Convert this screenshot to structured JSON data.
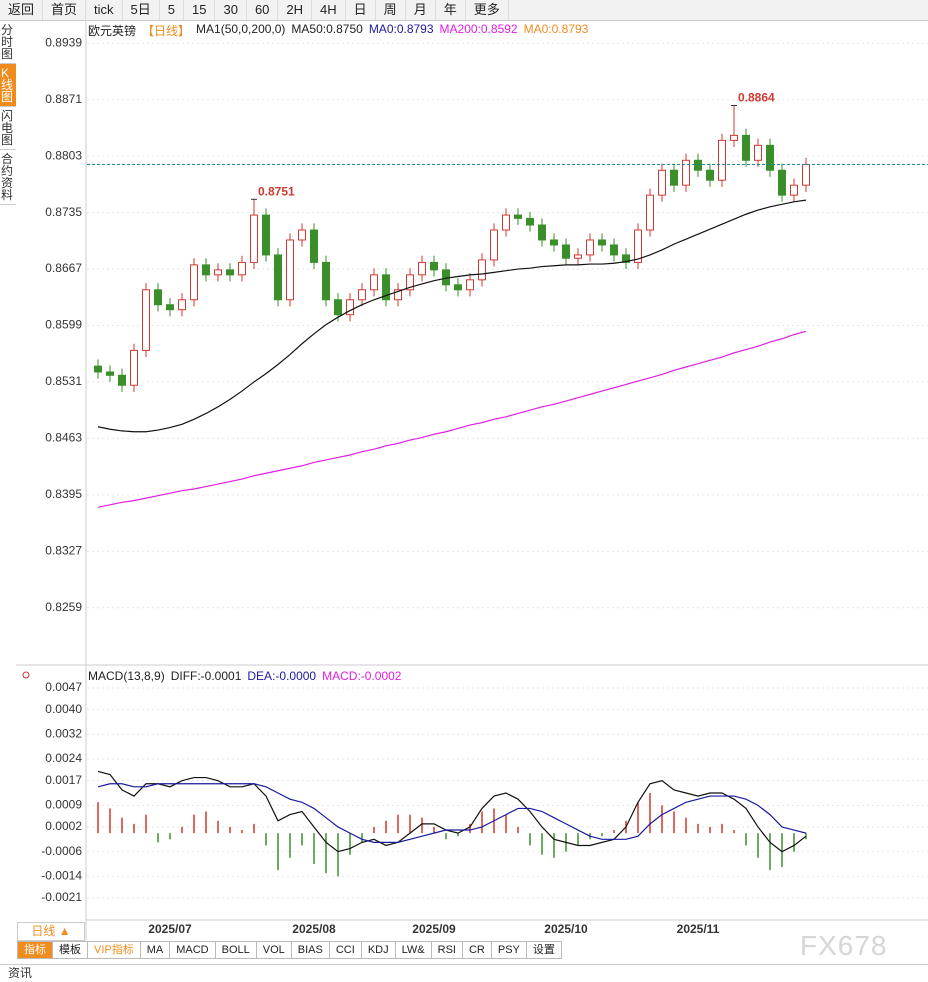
{
  "toolbar": [
    "返回",
    "首页",
    "tick",
    "5日",
    "5",
    "15",
    "30",
    "60",
    "2H",
    "4H",
    "日",
    "周",
    "月",
    "年",
    "更多"
  ],
  "sidebar": [
    "分时图",
    "K线图",
    "闪电图",
    "合约资料"
  ],
  "chart_data": [
    {
      "type": "candlestick",
      "title": "欧元英镑",
      "subtitle": "【日线】",
      "legend_items": [
        {
          "text": "MA1(50,0,200,0)",
          "color": "#222222"
        },
        {
          "text": "MA50:0.8750",
          "color": "#222222"
        },
        {
          "text": "MA0:0.8793",
          "color": "#1a1aa0"
        },
        {
          "text": "MA200:0.8592",
          "color": "#e020e0"
        },
        {
          "text": "MA0:0.8793",
          "color": "#f08c1e"
        }
      ],
      "categories": [
        null,
        null,
        null,
        null,
        null,
        null,
        "2025/07",
        null,
        null,
        null,
        null,
        null,
        null,
        null,
        null,
        null,
        null,
        null,
        "2025/08",
        null,
        null,
        null,
        null,
        null,
        null,
        null,
        null,
        null,
        "2025/09",
        null,
        null,
        null,
        null,
        null,
        null,
        null,
        null,
        null,
        null,
        "2025/10",
        null,
        null,
        null,
        null,
        null,
        null,
        null,
        null,
        null,
        null,
        "2025/11",
        null,
        null,
        null,
        null,
        null,
        null,
        null,
        null,
        null
      ],
      "open": [
        0.855,
        0.8543,
        0.8539,
        0.8527,
        0.8569,
        0.8642,
        0.8624,
        0.8618,
        0.863,
        0.8672,
        0.866,
        0.8666,
        0.866,
        0.8675,
        0.8732,
        0.8684,
        0.863,
        0.8702,
        0.8714,
        0.8675,
        0.863,
        0.8612,
        0.863,
        0.8642,
        0.866,
        0.863,
        0.8642,
        0.866,
        0.8675,
        0.8666,
        0.8648,
        0.8642,
        0.8654,
        0.8678,
        0.8714,
        0.8732,
        0.8728,
        0.872,
        0.8702,
        0.8696,
        0.868,
        0.8684,
        0.8702,
        0.8696,
        0.8684,
        0.8675,
        0.8714,
        0.8756,
        0.8786,
        0.8768,
        0.8798,
        0.8786,
        0.8774,
        0.8822,
        0.8828,
        0.8798,
        0.8816,
        0.8786,
        0.8756,
        0.8768
      ],
      "high": [
        0.8558,
        0.8551,
        0.8547,
        0.8577,
        0.865,
        0.865,
        0.8632,
        0.8638,
        0.868,
        0.868,
        0.8674,
        0.8674,
        0.8683,
        0.8751,
        0.874,
        0.8692,
        0.871,
        0.8722,
        0.8722,
        0.8683,
        0.8638,
        0.8638,
        0.865,
        0.8668,
        0.8668,
        0.865,
        0.8668,
        0.8683,
        0.8683,
        0.8674,
        0.8656,
        0.8662,
        0.8686,
        0.8722,
        0.874,
        0.874,
        0.8736,
        0.8728,
        0.871,
        0.8704,
        0.8692,
        0.871,
        0.871,
        0.8704,
        0.8692,
        0.8722,
        0.8764,
        0.8794,
        0.8794,
        0.8806,
        0.8806,
        0.8794,
        0.883,
        0.8864,
        0.8836,
        0.8824,
        0.8824,
        0.8794,
        0.8776,
        0.8801
      ],
      "low": [
        0.8535,
        0.8531,
        0.8519,
        0.8519,
        0.8561,
        0.8616,
        0.861,
        0.861,
        0.8622,
        0.8652,
        0.8652,
        0.8652,
        0.8652,
        0.8667,
        0.8676,
        0.8622,
        0.8622,
        0.8694,
        0.8667,
        0.8622,
        0.8604,
        0.8604,
        0.8622,
        0.8634,
        0.8622,
        0.8622,
        0.8634,
        0.8652,
        0.8658,
        0.864,
        0.8634,
        0.8634,
        0.8646,
        0.867,
        0.8706,
        0.872,
        0.8712,
        0.8694,
        0.8688,
        0.8672,
        0.8672,
        0.8676,
        0.8688,
        0.8676,
        0.8667,
        0.8667,
        0.8706,
        0.8748,
        0.876,
        0.876,
        0.8778,
        0.8766,
        0.8766,
        0.8814,
        0.879,
        0.879,
        0.8778,
        0.8748,
        0.8748,
        0.876
      ],
      "close": [
        0.8543,
        0.8539,
        0.8527,
        0.8569,
        0.8642,
        0.8624,
        0.8618,
        0.863,
        0.8672,
        0.866,
        0.8666,
        0.866,
        0.8675,
        0.8732,
        0.8684,
        0.863,
        0.8702,
        0.8714,
        0.8675,
        0.863,
        0.8612,
        0.863,
        0.8642,
        0.866,
        0.863,
        0.8642,
        0.866,
        0.8675,
        0.8666,
        0.8648,
        0.8642,
        0.8654,
        0.8678,
        0.8714,
        0.8732,
        0.8728,
        0.872,
        0.8702,
        0.8696,
        0.868,
        0.8684,
        0.8702,
        0.8696,
        0.8684,
        0.8675,
        0.8714,
        0.8756,
        0.8786,
        0.8768,
        0.8798,
        0.8786,
        0.8774,
        0.8822,
        0.8828,
        0.8798,
        0.8816,
        0.8786,
        0.8756,
        0.8768,
        0.8793
      ],
      "series": [
        {
          "color": "#111111",
          "values": [
            0.8477,
            0.8474,
            0.8472,
            0.8471,
            0.8471,
            0.8473,
            0.8476,
            0.848,
            0.8486,
            0.8493,
            0.8501,
            0.851,
            0.852,
            0.8531,
            0.8541,
            0.8552,
            0.8564,
            0.8577,
            0.8589,
            0.86,
            0.8609,
            0.8617,
            0.8624,
            0.863,
            0.8635,
            0.864,
            0.8645,
            0.8649,
            0.8653,
            0.8656,
            0.8658,
            0.866,
            0.8661,
            0.8663,
            0.8665,
            0.8667,
            0.8668,
            0.867,
            0.8671,
            0.8672,
            0.8672,
            0.8673,
            0.8673,
            0.8674,
            0.8676,
            0.8679,
            0.8684,
            0.869,
            0.8697,
            0.8703,
            0.8709,
            0.8715,
            0.8721,
            0.8727,
            0.8733,
            0.8738,
            0.8742,
            0.8745,
            0.8748,
            0.875
          ]
        },
        {
          "color": "#e020e0",
          "values": [
            0.838,
            0.8383,
            0.8386,
            0.8388,
            0.8391,
            0.8394,
            0.8397,
            0.84,
            0.8402,
            0.8405,
            0.8408,
            0.8411,
            0.8414,
            0.8418,
            0.8421,
            0.8424,
            0.8427,
            0.843,
            0.8434,
            0.8437,
            0.844,
            0.8443,
            0.8447,
            0.845,
            0.8454,
            0.8457,
            0.8461,
            0.8464,
            0.8468,
            0.8471,
            0.8475,
            0.8479,
            0.8482,
            0.8486,
            0.8489,
            0.8493,
            0.8497,
            0.8501,
            0.8504,
            0.8508,
            0.8512,
            0.8516,
            0.852,
            0.8524,
            0.8528,
            0.8532,
            0.8536,
            0.854,
            0.8545,
            0.8549,
            0.8553,
            0.8557,
            0.8561,
            0.8566,
            0.857,
            0.8574,
            0.8579,
            0.8583,
            0.8588,
            0.8592
          ]
        }
      ],
      "up_color": "#d0392f",
      "down_color": "#3a8f2a",
      "last_line_color": "#1a8a9a",
      "ylim": [
        0.819,
        0.8967
      ],
      "yticks": [
        0.8939,
        0.8871,
        0.8803,
        0.8735,
        0.8667,
        0.8599,
        0.8531,
        0.8463,
        0.8395,
        0.8327,
        0.8259
      ],
      "grid": true
    },
    {
      "type": "macd",
      "legend_items": [
        {
          "text": "MACD(13,8,9)",
          "color": "#222222"
        },
        {
          "text": "DIFF:-0.0001",
          "color": "#222222"
        },
        {
          "text": "DEA:-0.0000",
          "color": "#1a1aa0"
        },
        {
          "text": "MACD:-0.0002",
          "color": "#e020e0"
        }
      ],
      "values": [
        0.001,
        0.0008,
        0.0005,
        0.0003,
        0.0006,
        -0.0003,
        -0.0002,
        0.0002,
        0.0006,
        0.0007,
        0.0004,
        0.0002,
        0.0001,
        0.0003,
        -0.0004,
        -0.0012,
        -0.0008,
        -0.0004,
        -0.001,
        -0.0013,
        -0.0014,
        -0.0007,
        -0.0003,
        0.0002,
        0.0004,
        0.0006,
        0.0006,
        0.0005,
        0.0002,
        -0.0002,
        -0.0001,
        0.0003,
        0.0007,
        0.0008,
        0.0006,
        0.0002,
        -0.0004,
        -0.0007,
        -0.0008,
        -0.0006,
        -0.0004,
        -0.0002,
        -0.0001,
        0.0001,
        0.0004,
        0.001,
        0.0013,
        0.0009,
        0.0007,
        0.0005,
        0.0003,
        0.0002,
        0.0003,
        0.0001,
        -0.0004,
        -0.0008,
        -0.0012,
        -0.0011,
        -0.0006,
        -0.0002
      ],
      "series": [
        {
          "color": "#111111",
          "values": [
            0.002,
            0.0019,
            0.0014,
            0.0012,
            0.0016,
            0.0016,
            0.0015,
            0.0017,
            0.0018,
            0.0018,
            0.0017,
            0.0015,
            0.0015,
            0.0016,
            0.0012,
            0.0004,
            0.0006,
            0.0007,
            0.0002,
            -0.0003,
            -0.0006,
            -0.0005,
            -0.0003,
            -0.0002,
            -0.0004,
            -0.0003,
            0.0,
            0.0003,
            0.0003,
            0.0001,
            0.0,
            0.0002,
            0.0008,
            0.0012,
            0.0013,
            0.0011,
            0.0007,
            0.0002,
            -0.0002,
            -0.0003,
            -0.0004,
            -0.0004,
            -0.0003,
            -0.0002,
            0.0002,
            0.001,
            0.0016,
            0.0017,
            0.0014,
            0.0013,
            0.0012,
            0.0013,
            0.0013,
            0.0011,
            0.0008,
            0.0002,
            -0.0003,
            -0.0006,
            -0.0004,
            -0.0001
          ]
        },
        {
          "color": "#1a1aa0",
          "values": [
            0.0015,
            0.0016,
            0.0016,
            0.0015,
            0.0015,
            0.0016,
            0.0016,
            0.0016,
            0.0016,
            0.0016,
            0.0016,
            0.0016,
            0.0016,
            0.0016,
            0.0015,
            0.0013,
            0.0011,
            0.001,
            0.0008,
            0.0005,
            0.0002,
            0.0,
            -0.0002,
            -0.0003,
            -0.0003,
            -0.0003,
            -0.0002,
            -0.0001,
            0.0,
            0.0001,
            0.0001,
            0.0001,
            0.0002,
            0.0004,
            0.0006,
            0.0008,
            0.0008,
            0.0007,
            0.0005,
            0.0003,
            0.0001,
            -0.0001,
            -0.0002,
            -0.0002,
            -0.0002,
            -0.0001,
            0.0003,
            0.0006,
            0.0008,
            0.001,
            0.0011,
            0.0012,
            0.0012,
            0.0012,
            0.0011,
            0.0009,
            0.0006,
            0.0002,
            0.0001,
            0.0
          ]
        }
      ],
      "up_color": "#d0392f",
      "down_color": "#3a8f2a",
      "ylim": [
        -0.00275,
        0.00535
      ],
      "yticks": [
        0.0047,
        {
          "value": 0.004,
          "label": "0.0040"
        },
        0.0032,
        0.0024,
        0.0017,
        0.0009,
        0.0002,
        -0.0006,
        -0.0014,
        -0.0021
      ],
      "grid": true
    }
  ],
  "period_button": "日线 ▲",
  "indicator_tabs": [
    "指标",
    "模板",
    "VIP指标",
    "MA",
    "MACD",
    "BOLL",
    "VOL",
    "BIAS",
    "CCI",
    "KDJ",
    "LW&",
    "RSI",
    "CR",
    "PSY",
    "设置"
  ],
  "footer": "资讯",
  "watermark": "FX678"
}
